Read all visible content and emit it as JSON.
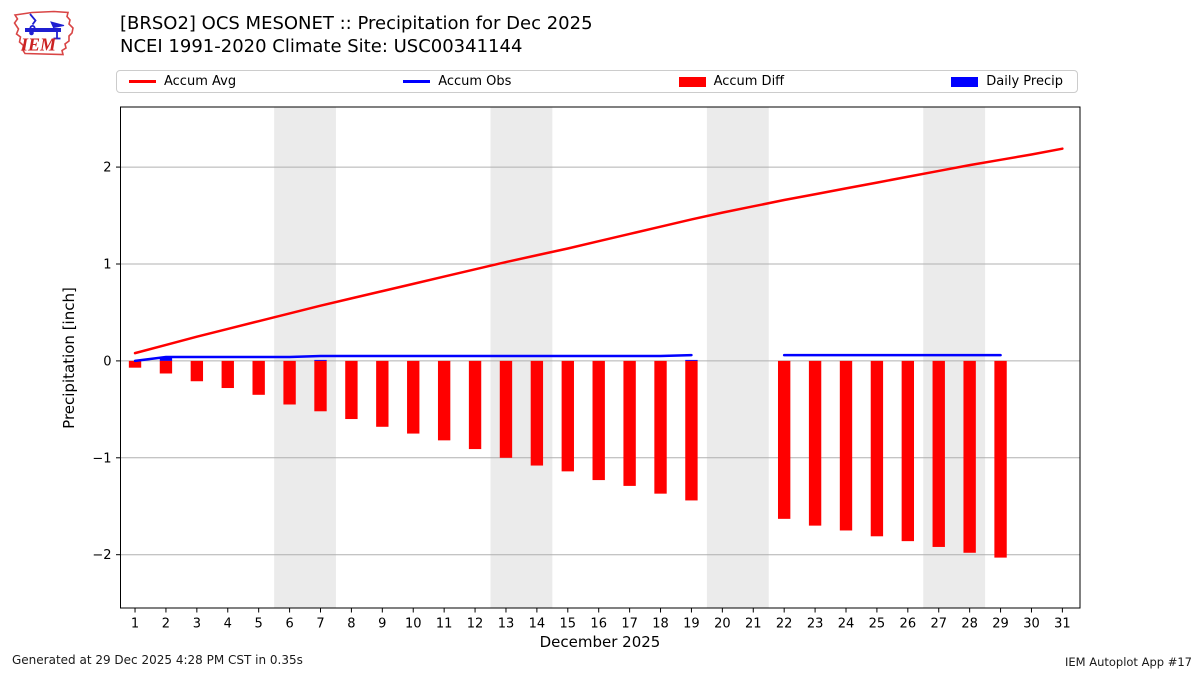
{
  "header": {
    "title_line1": "[BRSO2] OCS MESONET :: Precipitation for Dec 2025",
    "title_line2": "NCEI 1991-2020 Climate Site: USC00341144",
    "logo_text": "IEM"
  },
  "legend": {
    "items": [
      {
        "label": "Accum Avg",
        "swatch": "line",
        "color": "#ff0000"
      },
      {
        "label": "Accum Obs",
        "swatch": "line",
        "color": "#0000ff"
      },
      {
        "label": "Accum Diff",
        "swatch": "rect",
        "color": "#ff0000"
      },
      {
        "label": "Daily Precip",
        "swatch": "rect",
        "color": "#0000ff"
      }
    ]
  },
  "footer": {
    "generated": "Generated at 29 Dec 2025 4:28 PM CST in 0.35s",
    "app": "IEM Autoplot App #17"
  },
  "chart_data": {
    "type": "line+bar",
    "xlabel": "December 2025",
    "ylabel": "Precipitation [inch]",
    "x": [
      1,
      2,
      3,
      4,
      5,
      6,
      7,
      8,
      9,
      10,
      11,
      12,
      13,
      14,
      15,
      16,
      17,
      18,
      19,
      20,
      21,
      22,
      23,
      24,
      25,
      26,
      27,
      28,
      29,
      30,
      31
    ],
    "xlim": [
      0.53,
      31.57
    ],
    "ylim": [
      -2.55,
      2.62
    ],
    "yticks": [
      -2,
      -1,
      0,
      1,
      2
    ],
    "ytick_labels": [
      "−2",
      "−1",
      "0",
      "1",
      "2"
    ],
    "grid": "horizontal",
    "legend_position": "top",
    "weekend_bands": [
      [
        5.5,
        7.5
      ],
      [
        12.5,
        14.5
      ],
      [
        19.5,
        21.5
      ],
      [
        26.5,
        28.5
      ]
    ],
    "band_color": "#ebebeb",
    "grid_color": "#b0b0b0",
    "bar_width_days": 0.4,
    "series": [
      {
        "name": "Accum Avg",
        "type": "line",
        "color": "#ff0000",
        "values": [
          0.08,
          0.165,
          0.25,
          0.33,
          0.41,
          0.49,
          0.57,
          0.645,
          0.72,
          0.795,
          0.87,
          0.945,
          1.02,
          1.09,
          1.16,
          1.235,
          1.31,
          1.385,
          1.46,
          1.53,
          1.595,
          1.66,
          1.72,
          1.78,
          1.84,
          1.9,
          1.96,
          2.02,
          2.075,
          2.13,
          2.19
        ]
      },
      {
        "name": "Accum Obs",
        "type": "line",
        "color": "#0000ff",
        "values": [
          0.0,
          0.04,
          0.04,
          0.04,
          0.04,
          0.04,
          0.05,
          0.05,
          0.05,
          0.05,
          0.05,
          0.05,
          0.05,
          0.05,
          0.05,
          0.05,
          0.05,
          0.05,
          0.06,
          null,
          null,
          0.06,
          0.06,
          0.06,
          0.06,
          0.06,
          0.06,
          0.06,
          0.06,
          null,
          null
        ]
      },
      {
        "name": "Accum Diff",
        "type": "bar",
        "color": "#ff0000",
        "values": [
          -0.07,
          -0.13,
          -0.21,
          -0.28,
          -0.35,
          -0.45,
          -0.52,
          -0.6,
          -0.68,
          -0.75,
          -0.82,
          -0.91,
          -1.0,
          -1.08,
          -1.14,
          -1.23,
          -1.29,
          -1.37,
          -1.44,
          null,
          null,
          -1.63,
          -1.7,
          -1.75,
          -1.81,
          -1.86,
          -1.92,
          -1.98,
          -2.03,
          null,
          null
        ]
      },
      {
        "name": "Daily Precip",
        "type": "bar",
        "color": "#0000ff",
        "values": [
          0,
          0.04,
          0,
          0,
          0,
          0,
          0.01,
          0,
          0,
          0,
          0,
          0,
          0,
          0,
          0,
          0,
          0,
          0,
          0.01,
          null,
          null,
          0,
          0,
          0,
          0,
          0,
          0,
          0,
          0,
          null,
          null
        ]
      }
    ]
  }
}
